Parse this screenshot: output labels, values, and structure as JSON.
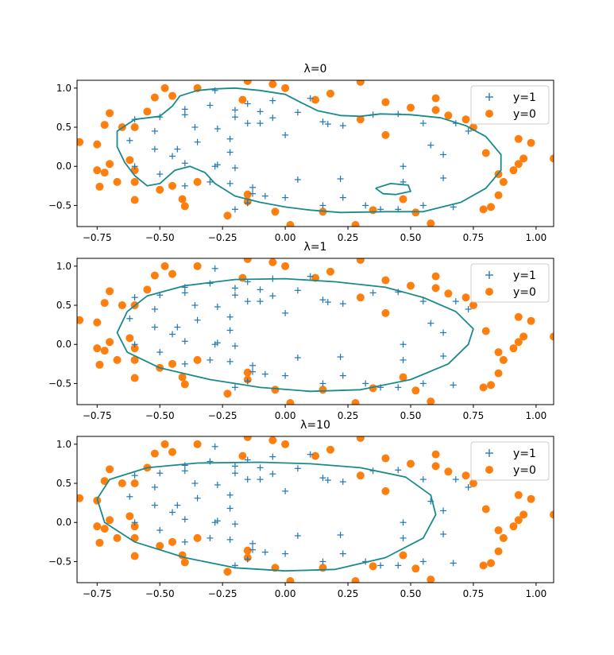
{
  "colors": {
    "positive": "#1f77b4",
    "negative": "#ff7f0e",
    "boundary": "#1a8a8c"
  },
  "chart_data": [
    {
      "type": "scatter",
      "title": "λ=0",
      "xlim": [
        -0.83,
        1.07
      ],
      "ylim": [
        -0.77,
        1.1
      ],
      "xticks": [
        "−0.75",
        "−0.50",
        "−0.25",
        "0.00",
        "0.25",
        "0.50",
        "0.75",
        "1.00"
      ],
      "yticks": [
        "−0.5",
        "0.0",
        "0.5",
        "1.0"
      ],
      "legend_position": "top-right",
      "series": [
        {
          "name": "y=1",
          "marker": "plus"
        },
        {
          "name": "y=0",
          "marker": "circle"
        }
      ],
      "decision_boundary": [
        [
          [
            -0.6,
            0.6
          ],
          [
            -0.5,
            0.64
          ],
          [
            -0.45,
            0.77
          ],
          [
            -0.42,
            0.9
          ],
          [
            -0.35,
            0.97
          ],
          [
            -0.28,
            0.99
          ],
          [
            -0.2,
            1.0
          ],
          [
            -0.1,
            0.97
          ],
          [
            0.0,
            0.92
          ],
          [
            0.06,
            0.82
          ],
          [
            0.13,
            0.71
          ],
          [
            0.22,
            0.65
          ],
          [
            0.3,
            0.64
          ],
          [
            0.38,
            0.67
          ],
          [
            0.5,
            0.66
          ],
          [
            0.62,
            0.62
          ],
          [
            0.72,
            0.52
          ],
          [
            0.8,
            0.38
          ],
          [
            0.86,
            0.15
          ],
          [
            0.86,
            -0.05
          ],
          [
            0.8,
            -0.28
          ],
          [
            0.7,
            -0.46
          ],
          [
            0.55,
            -0.58
          ],
          [
            0.4,
            -0.58
          ],
          [
            0.22,
            -0.59
          ],
          [
            0.1,
            -0.56
          ],
          [
            0.0,
            -0.52
          ],
          [
            -0.1,
            -0.46
          ],
          [
            -0.2,
            -0.38
          ],
          [
            -0.28,
            -0.22
          ],
          [
            -0.32,
            -0.08
          ],
          [
            -0.38,
            0.0
          ],
          [
            -0.44,
            -0.05
          ],
          [
            -0.5,
            -0.22
          ],
          [
            -0.55,
            -0.25
          ],
          [
            -0.6,
            -0.12
          ],
          [
            -0.64,
            0.05
          ],
          [
            -0.67,
            0.25
          ],
          [
            -0.67,
            0.45
          ],
          [
            -0.6,
            0.6
          ]
        ],
        [
          [
            0.36,
            -0.28
          ],
          [
            0.42,
            -0.22
          ],
          [
            0.49,
            -0.24
          ],
          [
            0.5,
            -0.32
          ],
          [
            0.44,
            -0.36
          ],
          [
            0.39,
            -0.35
          ],
          [
            0.36,
            -0.28
          ]
        ]
      ]
    },
    {
      "type": "scatter",
      "title": "λ=1",
      "xlim": [
        -0.83,
        1.07
      ],
      "ylim": [
        -0.77,
        1.1
      ],
      "xticks": [
        "−0.75",
        "−0.50",
        "−0.25",
        "0.00",
        "0.25",
        "0.50",
        "0.75",
        "1.00"
      ],
      "yticks": [
        "−0.5",
        "0.0",
        "0.5",
        "1.0"
      ],
      "legend_position": "top-right",
      "series": [
        {
          "name": "y=1",
          "marker": "plus"
        },
        {
          "name": "y=0",
          "marker": "circle"
        }
      ],
      "decision_boundary": [
        [
          [
            -0.63,
            0.42
          ],
          [
            -0.55,
            0.62
          ],
          [
            -0.4,
            0.75
          ],
          [
            -0.2,
            0.83
          ],
          [
            0.0,
            0.84
          ],
          [
            0.2,
            0.8
          ],
          [
            0.4,
            0.73
          ],
          [
            0.55,
            0.6
          ],
          [
            0.68,
            0.42
          ],
          [
            0.75,
            0.2
          ],
          [
            0.73,
            0.0
          ],
          [
            0.65,
            -0.25
          ],
          [
            0.5,
            -0.45
          ],
          [
            0.3,
            -0.58
          ],
          [
            0.1,
            -0.6
          ],
          [
            -0.1,
            -0.55
          ],
          [
            -0.3,
            -0.45
          ],
          [
            -0.5,
            -0.3
          ],
          [
            -0.63,
            -0.1
          ],
          [
            -0.67,
            0.15
          ],
          [
            -0.63,
            0.42
          ]
        ]
      ]
    },
    {
      "type": "scatter",
      "title": "λ=10",
      "xlim": [
        -0.83,
        1.07
      ],
      "ylim": [
        -0.77,
        1.1
      ],
      "xticks": [
        "−0.75",
        "−0.50",
        "−0.25",
        "0.00",
        "0.25",
        "0.50",
        "0.75",
        "1.00"
      ],
      "yticks": [
        "−0.5",
        "0.0",
        "0.5",
        "1.0"
      ],
      "legend_position": "top-right",
      "series": [
        {
          "name": "y=1",
          "marker": "plus"
        },
        {
          "name": "y=0",
          "marker": "circle"
        }
      ],
      "decision_boundary": [
        [
          [
            -0.75,
            0.3
          ],
          [
            -0.7,
            0.55
          ],
          [
            -0.55,
            0.7
          ],
          [
            -0.35,
            0.76
          ],
          [
            -0.1,
            0.77
          ],
          [
            0.1,
            0.75
          ],
          [
            0.3,
            0.7
          ],
          [
            0.48,
            0.58
          ],
          [
            0.58,
            0.35
          ],
          [
            0.6,
            0.1
          ],
          [
            0.55,
            -0.2
          ],
          [
            0.4,
            -0.45
          ],
          [
            0.2,
            -0.6
          ],
          [
            0.0,
            -0.62
          ],
          [
            -0.2,
            -0.58
          ],
          [
            -0.4,
            -0.45
          ],
          [
            -0.6,
            -0.25
          ],
          [
            -0.72,
            0.0
          ],
          [
            -0.75,
            0.3
          ]
        ]
      ]
    }
  ],
  "points": {
    "positive": [
      [
        -0.6,
        0.6
      ],
      [
        -0.5,
        0.63
      ],
      [
        -0.4,
        0.66
      ],
      [
        -0.3,
        0.78
      ],
      [
        -0.28,
        0.97
      ],
      [
        -0.2,
        0.72
      ],
      [
        -0.15,
        0.8
      ],
      [
        -0.1,
        0.7
      ],
      [
        -0.15,
        0.55
      ],
      [
        -0.1,
        0.55
      ],
      [
        -0.05,
        0.84
      ],
      [
        -0.2,
        0.63
      ],
      [
        -0.62,
        0.33
      ],
      [
        -0.52,
        0.45
      ],
      [
        -0.36,
        0.5
      ],
      [
        -0.27,
        0.48
      ],
      [
        -0.4,
        0.73
      ],
      [
        -0.05,
        0.62
      ],
      [
        0.1,
        0.87
      ],
      [
        0.05,
        0.69
      ],
      [
        0.15,
        0.57
      ],
      [
        0.17,
        0.54
      ],
      [
        0.23,
        0.52
      ],
      [
        0.35,
        0.66
      ],
      [
        0.45,
        0.67
      ],
      [
        0.55,
        0.55
      ],
      [
        0.68,
        0.55
      ],
      [
        0.73,
        0.45
      ],
      [
        -0.22,
        0.35
      ],
      [
        -0.35,
        0.31
      ],
      [
        -0.52,
        0.22
      ],
      [
        -0.43,
        0.22
      ],
      [
        -0.45,
        0.13
      ],
      [
        -0.22,
        0.18
      ],
      [
        -0.28,
        0.0
      ],
      [
        -0.2,
        -0.02
      ],
      [
        -0.6,
        0.0
      ],
      [
        -0.5,
        -0.1
      ],
      [
        -0.4,
        0.04
      ],
      [
        -0.4,
        -0.25
      ],
      [
        -0.3,
        -0.2
      ],
      [
        -0.22,
        -0.22
      ],
      [
        -0.27,
        0.02
      ],
      [
        0.0,
        0.4
      ],
      [
        -0.13,
        -0.27
      ],
      [
        -0.13,
        -0.35
      ],
      [
        -0.08,
        -0.38
      ],
      [
        0.05,
        -0.17
      ],
      [
        0.22,
        -0.16
      ],
      [
        0.47,
        -0.2
      ],
      [
        0.47,
        0.0
      ],
      [
        0.58,
        0.27
      ],
      [
        0.63,
        0.15
      ],
      [
        0.63,
        -0.15
      ],
      [
        0.23,
        -0.4
      ],
      [
        0.15,
        -0.5
      ],
      [
        0.32,
        -0.5
      ],
      [
        0.38,
        -0.55
      ],
      [
        0.45,
        -0.55
      ],
      [
        0.55,
        -0.5
      ],
      [
        0.67,
        -0.52
      ],
      [
        0.0,
        -0.4
      ],
      [
        -0.15,
        -0.47
      ],
      [
        -0.2,
        -0.55
      ]
    ],
    "negative": [
      [
        -0.82,
        0.31
      ],
      [
        -0.75,
        0.28
      ],
      [
        -0.74,
        -0.26
      ],
      [
        -0.72,
        -0.08
      ],
      [
        -0.7,
        0.03
      ],
      [
        -0.67,
        -0.2
      ],
      [
        -0.6,
        -0.43
      ],
      [
        -0.5,
        -0.3
      ],
      [
        -0.45,
        -0.25
      ],
      [
        -0.41,
        -0.42
      ],
      [
        -0.4,
        -0.51
      ],
      [
        -0.23,
        -0.63
      ],
      [
        -0.15,
        -0.45
      ],
      [
        -0.15,
        -0.36
      ],
      [
        -0.04,
        -0.58
      ],
      [
        0.02,
        -0.75
      ],
      [
        0.15,
        -0.58
      ],
      [
        0.28,
        -0.75
      ],
      [
        0.35,
        -0.56
      ],
      [
        0.47,
        -0.42
      ],
      [
        0.52,
        -0.59
      ],
      [
        0.58,
        -0.73
      ],
      [
        0.79,
        -0.55
      ],
      [
        0.82,
        -0.52
      ],
      [
        0.85,
        -0.37
      ],
      [
        0.87,
        -0.2
      ],
      [
        0.91,
        -0.05
      ],
      [
        0.93,
        0.03
      ],
      [
        0.95,
        0.1
      ],
      [
        0.93,
        0.35
      ],
      [
        0.8,
        0.17
      ],
      [
        0.85,
        -0.1
      ],
      [
        0.75,
        0.5
      ],
      [
        0.72,
        0.6
      ],
      [
        0.65,
        0.65
      ],
      [
        0.6,
        0.72
      ],
      [
        0.6,
        0.87
      ],
      [
        0.5,
        0.75
      ],
      [
        0.4,
        0.82
      ],
      [
        0.3,
        0.6
      ],
      [
        0.3,
        1.08
      ],
      [
        0.18,
        0.93
      ],
      [
        0.12,
        0.85
      ],
      [
        0.0,
        1.0
      ],
      [
        -0.05,
        1.05
      ],
      [
        -0.15,
        1.09
      ],
      [
        -0.17,
        0.85
      ],
      [
        -0.35,
        1.0
      ],
      [
        -0.45,
        0.9
      ],
      [
        -0.48,
        1.0
      ],
      [
        -0.52,
        0.88
      ],
      [
        -0.55,
        0.7
      ],
      [
        -0.6,
        0.5
      ],
      [
        -0.65,
        0.5
      ],
      [
        -0.7,
        0.68
      ],
      [
        -0.72,
        0.53
      ],
      [
        -0.6,
        -0.05
      ],
      [
        -0.62,
        0.08
      ],
      [
        -0.75,
        -0.05
      ],
      [
        1.07,
        0.1
      ],
      [
        0.98,
        0.3
      ],
      [
        0.4,
        0.4
      ],
      [
        -0.6,
        -0.2
      ],
      [
        -0.35,
        -0.2
      ]
    ]
  }
}
